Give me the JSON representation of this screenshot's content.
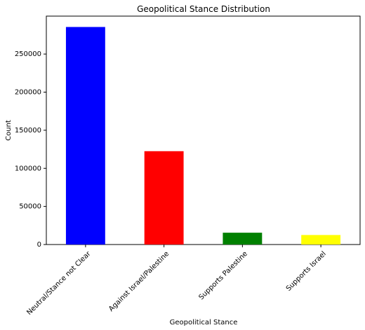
{
  "chart_data": {
    "type": "bar",
    "title": "Geopolitical Stance Distribution",
    "xlabel": "Geopolitical Stance",
    "ylabel": "Count",
    "categories": [
      "Neutral/Stance not Clear",
      "Against Israel/Palestine",
      "Supports Palestine",
      "Supports Israel"
    ],
    "values": [
      285500,
      122500,
      15500,
      12500
    ],
    "colors": [
      "#0000ff",
      "#ff0000",
      "#008000",
      "#ffff00"
    ],
    "ylim": [
      0,
      299775
    ],
    "yticks": [
      0,
      50000,
      100000,
      150000,
      200000,
      250000
    ],
    "grid": false,
    "legend": "none"
  }
}
